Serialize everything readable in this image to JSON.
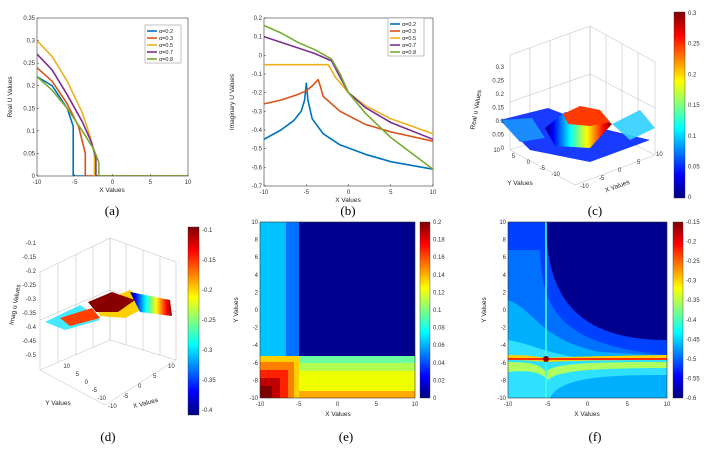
{
  "alpha_symbol": "α",
  "series_colors": [
    "#0072BD",
    "#D95319",
    "#EDB120",
    "#7E2F8E",
    "#77AC30"
  ],
  "colorbar_stops": [
    "#00007f",
    "#0000ff",
    "#007fff",
    "#00ffff",
    "#7fff7f",
    "#ffff00",
    "#ff7f00",
    "#ff0000",
    "#7f0000"
  ],
  "captions": [
    "(a)",
    "(b)",
    "(c)",
    "(d)",
    "(e)",
    "(f)"
  ],
  "chart_data": [
    {
      "type": "line",
      "id": "a",
      "xlabel": "X Values",
      "ylabel": "Real U Values",
      "xlim": [
        -10,
        10
      ],
      "ylim": [
        0,
        0.35
      ],
      "xticks": [
        "-10",
        "-5",
        "0",
        "5",
        "10"
      ],
      "yticks": [
        "0",
        "0.05",
        "0.1",
        "0.15",
        "0.2",
        "0.25",
        "0.3",
        "0.35"
      ],
      "legend": [
        "α=0.2",
        "α=0.3",
        "α=0.5",
        "α=0.7",
        "α=0.8"
      ],
      "series": [
        {
          "name": "α=0.2",
          "x": [
            -10,
            -8,
            -6,
            -5.2,
            -5.2,
            10
          ],
          "y": [
            0.22,
            0.2,
            0.15,
            0.11,
            0,
            0
          ]
        },
        {
          "name": "α=0.3",
          "x": [
            -10,
            -8,
            -6,
            -4.5,
            -3.6,
            -3.6,
            10
          ],
          "y": [
            0.24,
            0.21,
            0.16,
            0.11,
            0.05,
            0,
            0
          ]
        },
        {
          "name": "α=0.5",
          "x": [
            -10,
            -8,
            -6,
            -4,
            -3,
            -2.4,
            -2.4,
            10
          ],
          "y": [
            0.3,
            0.265,
            0.21,
            0.14,
            0.09,
            0.05,
            0,
            0
          ]
        },
        {
          "name": "α=0.7",
          "x": [
            -10,
            -8,
            -6,
            -4,
            -2.8,
            -2.2,
            -2.2,
            10
          ],
          "y": [
            0.27,
            0.235,
            0.18,
            0.12,
            0.075,
            0.04,
            0,
            0
          ]
        },
        {
          "name": "α=0.8",
          "x": [
            -10,
            -8,
            -6,
            -4,
            -2.5,
            -1.8,
            -1.8,
            10
          ],
          "y": [
            0.22,
            0.19,
            0.15,
            0.1,
            0.06,
            0.03,
            0,
            0
          ]
        }
      ]
    },
    {
      "type": "line",
      "id": "b",
      "xlabel": "X Values",
      "ylabel": "Imaginary U Values",
      "xlim": [
        -10,
        10
      ],
      "ylim": [
        -0.7,
        0.2
      ],
      "xticks": [
        "-10",
        "-5",
        "0",
        "5",
        "10"
      ],
      "yticks": [
        "0.2",
        "0.1",
        "0",
        "-0.1",
        "-0.2",
        "-0.3",
        "-0.4",
        "-0.5",
        "-0.6",
        "-0.7"
      ],
      "legend": [
        "α=0.2",
        "α=0.3",
        "α=0.5",
        "α=0.7",
        "α=0.8"
      ],
      "series": [
        {
          "name": "α=0.2",
          "x": [
            -10,
            -8,
            -6.5,
            -5.6,
            -5.2,
            -5,
            -4.8,
            -4.3,
            -3,
            -1,
            2,
            5,
            10
          ],
          "y": [
            -0.45,
            -0.4,
            -0.35,
            -0.3,
            -0.24,
            -0.15,
            -0.24,
            -0.34,
            -0.42,
            -0.48,
            -0.53,
            -0.57,
            -0.61
          ]
        },
        {
          "name": "α=0.3",
          "x": [
            -10,
            -8,
            -6,
            -5,
            -4.2,
            -3.6,
            -3.3,
            -3,
            -1,
            2,
            5,
            10
          ],
          "y": [
            -0.26,
            -0.24,
            -0.21,
            -0.19,
            -0.16,
            -0.13,
            -0.17,
            -0.22,
            -0.3,
            -0.37,
            -0.41,
            -0.46
          ]
        },
        {
          "name": "α=0.5",
          "x": [
            -10,
            -8,
            -6,
            -4,
            -2.4,
            -1.5,
            0,
            2,
            5,
            10
          ],
          "y": [
            -0.05,
            -0.05,
            -0.05,
            -0.05,
            -0.05,
            -0.12,
            -0.2,
            -0.27,
            -0.34,
            -0.42
          ]
        },
        {
          "name": "α=0.7",
          "x": [
            -10,
            -8,
            -6,
            -4,
            -2,
            -1.2,
            0,
            2,
            5,
            10
          ],
          "y": [
            0.1,
            0.07,
            0.04,
            0.01,
            -0.03,
            -0.1,
            -0.2,
            -0.28,
            -0.36,
            -0.45
          ]
        },
        {
          "name": "α=0.8",
          "x": [
            -10,
            -8,
            -6,
            -4,
            -2,
            -1,
            0,
            2,
            5,
            10
          ],
          "y": [
            0.16,
            0.12,
            0.07,
            0.03,
            -0.02,
            -0.1,
            -0.2,
            -0.31,
            -0.44,
            -0.61
          ]
        }
      ]
    },
    {
      "type": "surface",
      "id": "c",
      "xlabel": "X Values",
      "ylabel": "Y Values",
      "zlabel": "Real u Values",
      "zticks": [
        "0",
        "0.05",
        "0.1",
        "0.15",
        "0.2",
        "0.25",
        "0.3"
      ],
      "xticks": [
        "-10",
        "-5",
        "0",
        "5",
        "10"
      ],
      "yticks": [
        "10",
        "5",
        "0",
        "-5",
        "-10"
      ],
      "colorbar": {
        "min": 0,
        "max": 0.3,
        "ticks": [
          "0.3",
          "0.25",
          "0.2",
          "0.15",
          "0.1",
          "0.05",
          "0"
        ]
      }
    },
    {
      "type": "surface",
      "id": "d",
      "xlabel": "X Values",
      "ylabel": "Y Values",
      "zlabel": "Imag u Values",
      "zticks": [
        "-0.1",
        "-0.15",
        "-0.2",
        "-0.25",
        "-0.3",
        "-0.35",
        "-0.4",
        "-0.45",
        "-0.5"
      ],
      "xticks": [
        "-10",
        "-5",
        "0",
        "5",
        "10"
      ],
      "yticks": [
        "10",
        "5",
        "0",
        "-5",
        "-10"
      ],
      "colorbar": {
        "min": -0.4,
        "max": -0.1,
        "ticks": [
          "-0.1",
          "-0.15",
          "-0.2",
          "-0.25",
          "-0.3",
          "-0.35",
          "-0.4"
        ]
      }
    },
    {
      "type": "heatmap",
      "id": "e",
      "xlabel": "X Values",
      "ylabel": "Y Values",
      "xticks": [
        "-10",
        "-5",
        "0",
        "5",
        "10"
      ],
      "yticks": [
        "10",
        "8",
        "6",
        "4",
        "2",
        "0",
        "-2",
        "-4",
        "-6",
        "-8",
        "-10"
      ],
      "colorbar": {
        "min": 0,
        "max": 0.2,
        "ticks": [
          "0.2",
          "0.18",
          "0.16",
          "0.14",
          "0.12",
          "0.1",
          "0.08",
          "0.06",
          "0.04",
          "0.02",
          "0"
        ]
      }
    },
    {
      "type": "heatmap",
      "id": "f",
      "xlabel": "X Values",
      "ylabel": "Y Values",
      "xticks": [
        "-10",
        "-5",
        "0",
        "5",
        "10"
      ],
      "yticks": [
        "10",
        "8",
        "6",
        "4",
        "2",
        "0",
        "-2",
        "-4",
        "-6",
        "-8",
        "-10"
      ],
      "colorbar": {
        "min": -0.6,
        "max": -0.15,
        "ticks": [
          "-0.15",
          "-0.2",
          "-0.25",
          "-0.3",
          "-0.35",
          "-0.4",
          "-0.45",
          "-0.5",
          "-0.55",
          "-0.6"
        ]
      }
    }
  ]
}
